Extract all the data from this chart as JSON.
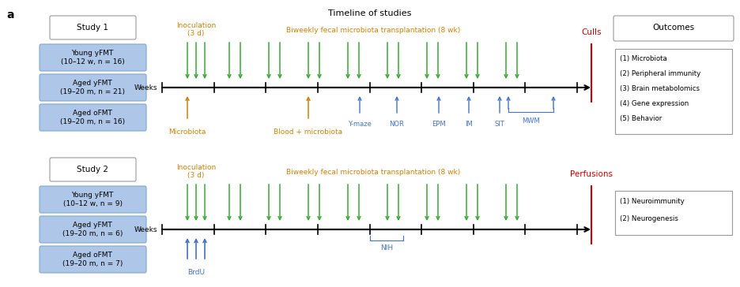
{
  "title": "Timeline of studies",
  "bg_color": "#ffffff",
  "study1": {
    "label": "Study 1",
    "groups": [
      "Young yFMT\n(10–12 w, n = 16)",
      "Aged yFMT\n(19–20 m, n = 21)",
      "Aged oFMT\n(19–20 m, n = 16)"
    ]
  },
  "study2": {
    "label": "Study 2",
    "groups": [
      "Young yFMT\n(10–12 w, n = 9)",
      "Aged yFMT\n(19–20 m, n = 6)",
      "Aged oFMT\n(19–20 m, n = 7)"
    ]
  },
  "outcomes1_title": "Outcomes",
  "outcomes1": [
    "(1) Microbiota",
    "(2) Peripheral immunity",
    "(3) Brain metabolomics",
    "(4) Gene expression",
    "(5) Behavior"
  ],
  "outcomes2": [
    "(1) Neuroimmunity",
    "(2) Neurogenesis"
  ],
  "green": "#3aaa35",
  "blue": "#4472c4",
  "orange": "#c8830a",
  "red": "#cc0000",
  "box_blue_fill": "#aec6e8",
  "box_blue_edge": "#7ea8cc",
  "box_white_fill": "#ffffff",
  "box_gray_edge": "#999999",
  "text_dark": "#1a1a1a",
  "label_a_size": 10,
  "title_size": 8,
  "group_label_size": 6.5,
  "tick_label_size": 6.5,
  "annot_size": 6.5,
  "small_annot_size": 6
}
